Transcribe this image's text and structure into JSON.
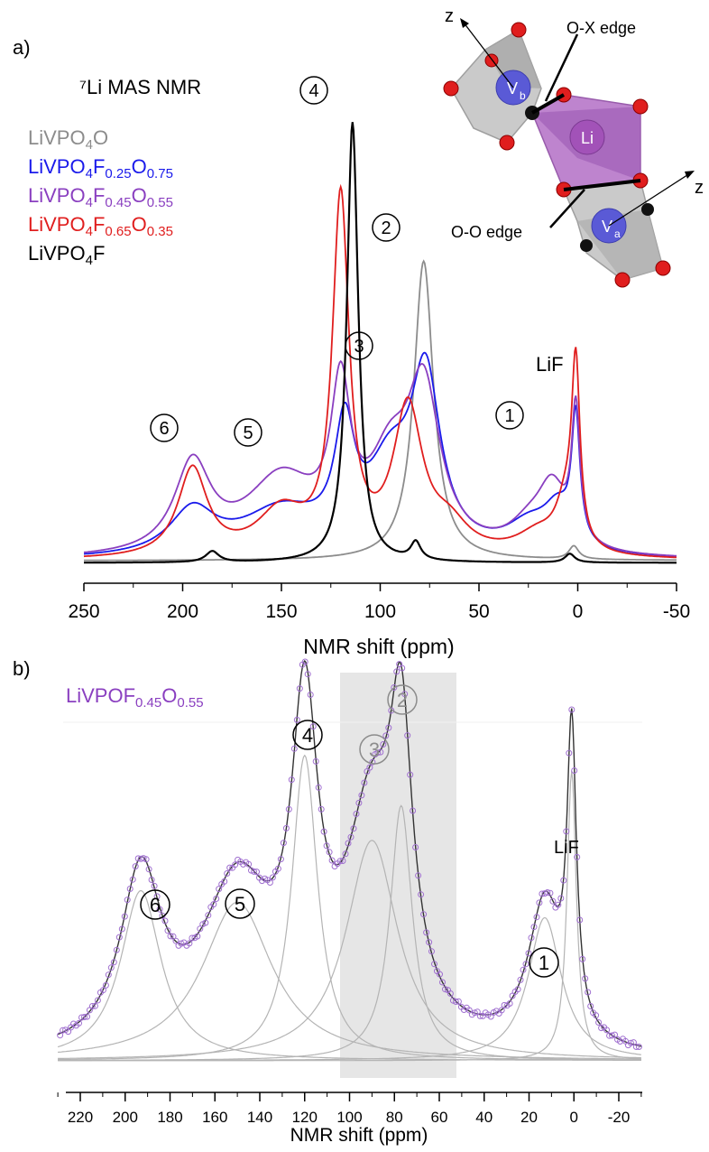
{
  "panel_a": {
    "label": "a)",
    "title": "⁷Li MAS NMR",
    "legend": [
      {
        "parts": [
          [
            "LiVPO",
            ""
          ],
          [
            "4",
            "sub"
          ],
          [
            "O",
            ""
          ]
        ],
        "color": "#8c8c8c"
      },
      {
        "parts": [
          [
            "LiVPO",
            ""
          ],
          [
            "4",
            "sub"
          ],
          [
            "F",
            ""
          ],
          [
            "0.25",
            "sub"
          ],
          [
            "O",
            ""
          ],
          [
            "0.75",
            "sub"
          ]
        ],
        "color": "#1a1aeb"
      },
      {
        "parts": [
          [
            "LiVPO",
            ""
          ],
          [
            "4",
            "sub"
          ],
          [
            "F",
            ""
          ],
          [
            "0.45",
            "sub"
          ],
          [
            "O",
            ""
          ],
          [
            "0.55",
            "sub"
          ]
        ],
        "color": "#8a3fc0"
      },
      {
        "parts": [
          [
            "LiVPO",
            ""
          ],
          [
            "4",
            "sub"
          ],
          [
            "F",
            ""
          ],
          [
            "0.65",
            "sub"
          ],
          [
            "O",
            ""
          ],
          [
            "0.35",
            "sub"
          ]
        ],
        "color": "#e01e1e"
      },
      {
        "parts": [
          [
            "LiVPO",
            ""
          ],
          [
            "4",
            "sub"
          ],
          [
            "F",
            ""
          ]
        ],
        "color": "#000000"
      }
    ],
    "peak_labels": [
      "④",
      "②",
      "③",
      "⑥",
      "⑤",
      "①",
      "LiF"
    ],
    "structure": {
      "z_label": "z",
      "oxedge": "O-X edge",
      "ooedge": "O-O edge",
      "li": "Li",
      "vb": "V",
      "vb_sub": "b",
      "va": "V",
      "va_sub": "a"
    }
  },
  "panel_b": {
    "label": "b)",
    "legend": {
      "parts": [
        [
          "LiVPOF",
          ""
        ],
        [
          "0.45",
          "sub"
        ],
        [
          "O",
          ""
        ],
        [
          "0.55",
          "sub"
        ]
      ],
      "color": "#8a3fc0"
    },
    "peak_labels": [
      "④",
      "②",
      "③",
      "⑥",
      "⑤",
      "①",
      "LiF"
    ]
  },
  "colors": {
    "LiVPO4O": "#8c8c8c",
    "LiVPO4F0.25O0.75": "#1a1aeb",
    "LiVPO4F0.45O0.55": "#8a3fc0",
    "LiVPO4F0.65O0.35": "#e01e1e",
    "LiVPO4F": "#000000",
    "component": "#b4b4b4",
    "shade": "#e6e6e6"
  },
  "chart_data": [
    {
      "type": "line",
      "panel": "a",
      "xlabel": "NMR shift (ppm)",
      "ylabel": "",
      "xlim": [
        250,
        -50
      ],
      "xticks": [
        250,
        200,
        150,
        100,
        50,
        0,
        -50
      ],
      "x_reversed": true,
      "ylim": [
        0,
        1.05
      ],
      "series": [
        {
          "name": "LiVPO4O",
          "color": "#8c8c8c",
          "peaks": [
            [
              78,
              0.68,
              6
            ],
            [
              2,
              0.03,
              3
            ]
          ],
          "baseline": 0.01
        },
        {
          "name": "LiVPO4F0.25O0.75",
          "color": "#1a1aeb",
          "peaks": [
            [
              195,
              0.1,
              14
            ],
            [
              150,
              0.1,
              25
            ],
            [
              118,
              0.25,
              6
            ],
            [
              95,
              0.18,
              14
            ],
            [
              77,
              0.38,
              9
            ],
            [
              25,
              0.06,
              14
            ],
            [
              10,
              0.09,
              9
            ],
            [
              1,
              0.28,
              2.5
            ]
          ],
          "baseline": 0.01
        },
        {
          "name": "LiVPO4F0.45O0.55",
          "color": "#8a3fc0",
          "peaks": [
            [
              195,
              0.2,
              11
            ],
            [
              150,
              0.17,
              22
            ],
            [
              120,
              0.33,
              6
            ],
            [
              95,
              0.18,
              13
            ],
            [
              78,
              0.35,
              10
            ],
            [
              25,
              0.05,
              12
            ],
            [
              13,
              0.14,
              9
            ],
            [
              1,
              0.3,
              2.5
            ]
          ],
          "baseline": 0.01
        },
        {
          "name": "LiVPO4F0.65O0.35",
          "color": "#e01e1e",
          "peaks": [
            [
              195,
              0.2,
              9
            ],
            [
              150,
              0.1,
              15
            ],
            [
              120,
              0.8,
              5
            ],
            [
              86,
              0.33,
              9
            ],
            [
              65,
              0.06,
              12
            ],
            [
              20,
              0.05,
              14
            ],
            [
              6,
              0.1,
              6
            ],
            [
              1,
              0.4,
              2.5
            ]
          ],
          "baseline": 0.01
        },
        {
          "name": "LiVPO4F",
          "color": "#000000",
          "peaks": [
            [
              114,
              1.0,
              3.5
            ],
            [
              185,
              0.025,
              4
            ],
            [
              82,
              0.04,
              3
            ],
            [
              4,
              0.02,
              3
            ]
          ],
          "baseline": 0.005
        }
      ]
    },
    {
      "type": "line",
      "panel": "b",
      "xlabel": "NMR shift (ppm)",
      "ylabel": "",
      "xlim": [
        230,
        -30
      ],
      "xticks": [
        220,
        200,
        180,
        160,
        140,
        120,
        100,
        80,
        60,
        40,
        20,
        0,
        -20
      ],
      "x_reversed": true,
      "ylim": [
        0,
        1.05
      ],
      "shaded_region": [
        106,
        54
      ],
      "components": [
        {
          "label": "⑥",
          "center": 193,
          "height": 0.44,
          "hwhm": 11
        },
        {
          "label": "⑤",
          "center": 150,
          "height": 0.41,
          "hwhm": 19
        },
        {
          "label": "④",
          "center": 120,
          "height": 0.79,
          "hwhm": 7
        },
        {
          "label": "③",
          "center": 90,
          "height": 0.57,
          "hwhm": 14
        },
        {
          "label": "②",
          "center": 77,
          "height": 0.66,
          "hwhm": 6
        },
        {
          "label": "①",
          "center": 13,
          "height": 0.37,
          "hwhm": 9
        },
        {
          "label": "LiF",
          "center": 1,
          "height": 0.75,
          "hwhm": 2.5
        }
      ],
      "series": [
        {
          "name": "fit",
          "color": "#333333"
        },
        {
          "name": "experimental",
          "color": "#8a3fc0",
          "marker": "circle"
        }
      ]
    }
  ]
}
